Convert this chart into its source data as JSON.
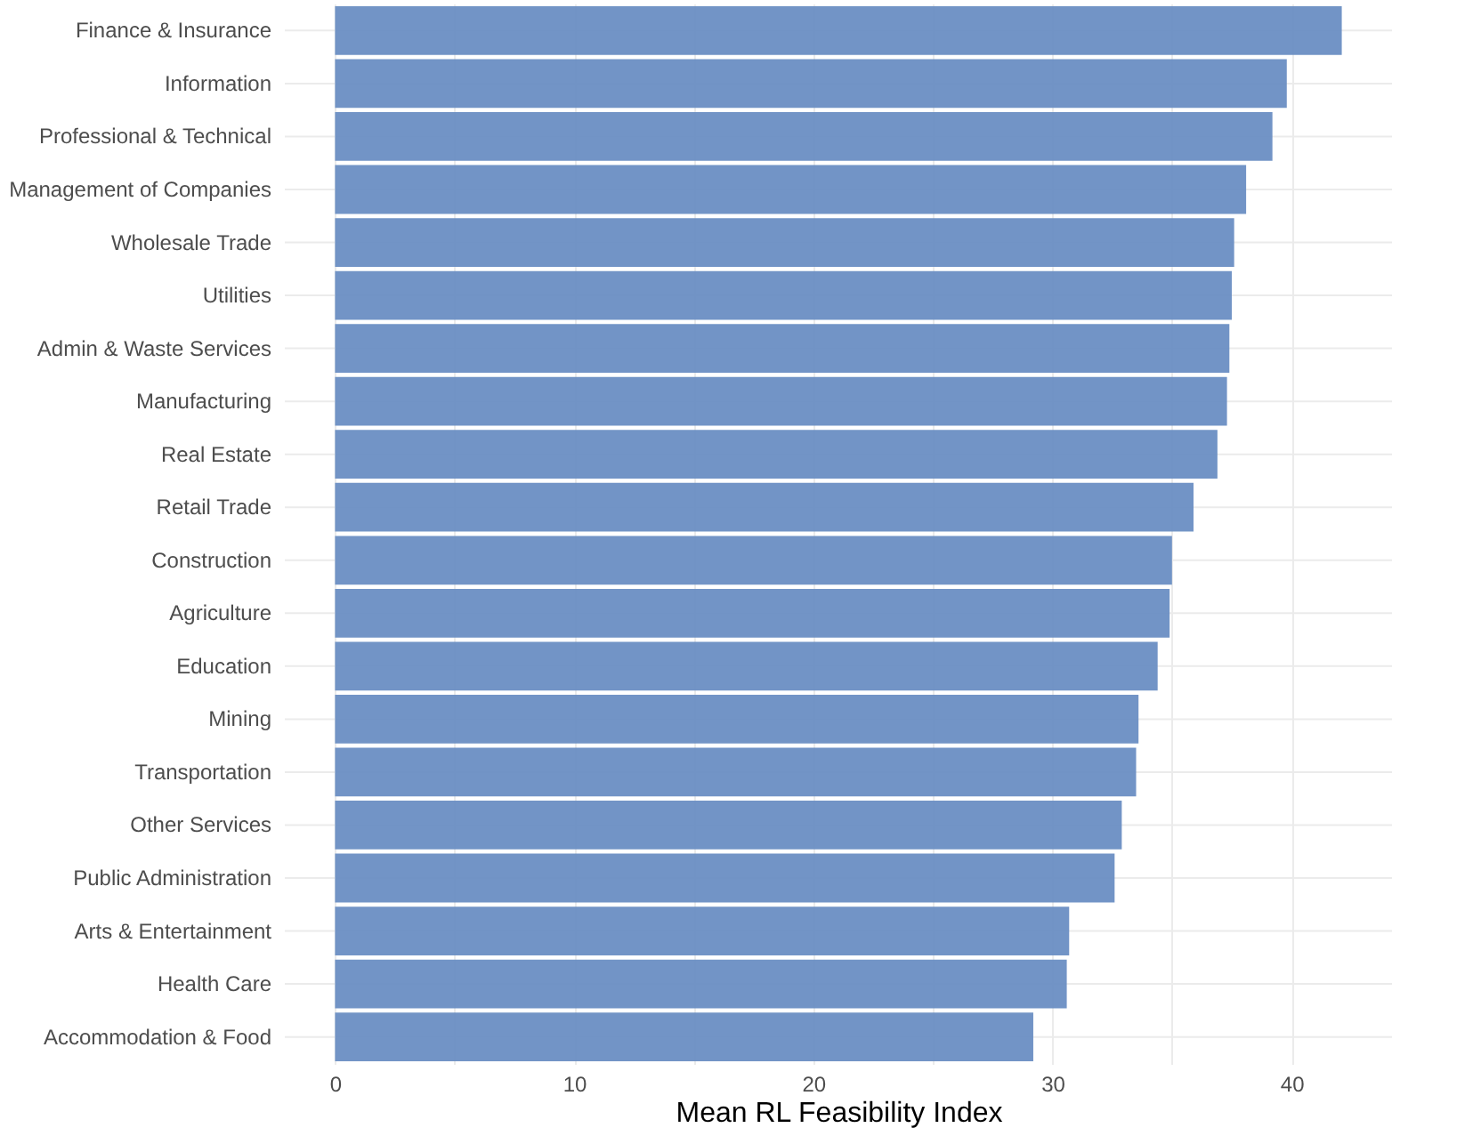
{
  "chart_data": {
    "type": "bar",
    "orientation": "horizontal",
    "xlabel": "Mean RL Feasibility Index",
    "categories": [
      "Finance & Insurance",
      "Information",
      "Professional & Technical",
      "Management of Companies",
      "Wholesale Trade",
      "Utilities",
      "Admin & Waste Services",
      "Manufacturing",
      "Real Estate",
      "Retail Trade",
      "Construction",
      "Agriculture",
      "Education",
      "Mining",
      "Transportation",
      "Other Services",
      "Public Administration",
      "Arts & Entertainment",
      "Health Care",
      "Accommodation & Food"
    ],
    "values": [
      42.1,
      39.8,
      39.2,
      38.1,
      37.6,
      37.5,
      37.4,
      37.3,
      36.9,
      35.9,
      35.0,
      34.9,
      34.4,
      33.6,
      33.5,
      32.9,
      32.6,
      30.7,
      30.6,
      29.2
    ],
    "color": "#6a8ec3",
    "xlim": [
      -2.1,
      44.2
    ],
    "xticks": [
      0,
      {
        "value": 5,
        "label": null
      },
      10,
      {
        "value": 15,
        "label": null
      },
      20,
      {
        "value": 25,
        "label": null
      },
      30,
      {
        "value": 35,
        "label": null
      },
      40
    ],
    "grid": true
  }
}
